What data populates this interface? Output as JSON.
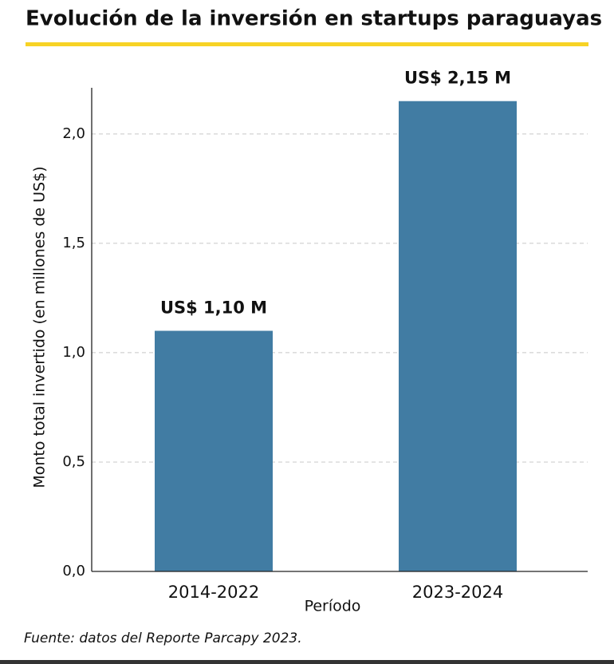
{
  "chart_data": {
    "type": "bar",
    "title": "Evolución de la inversión en startups paraguayas",
    "x_label": "Período",
    "y_label": "Monto total invertido (en millones de US$)",
    "source": "Fuente: datos del Reporte Parcapy 2023.",
    "categories": [
      "2014-2022",
      "2023-2024"
    ],
    "values": [
      1.1,
      2.15
    ],
    "value_labels": [
      "US$ 1,10 M",
      "US$ 2,15 M"
    ],
    "color": "#417ca3",
    "ylim": [
      0,
      2.2
    ],
    "yticks": [
      {
        "value": 0,
        "label": "0,0"
      },
      {
        "value": 0.5,
        "label": "0,5"
      },
      {
        "value": 1,
        "label": "1,0"
      },
      {
        "value": 1.5,
        "label": "1,5"
      },
      {
        "value": 2,
        "label": "2,0"
      }
    ],
    "grid": true
  }
}
